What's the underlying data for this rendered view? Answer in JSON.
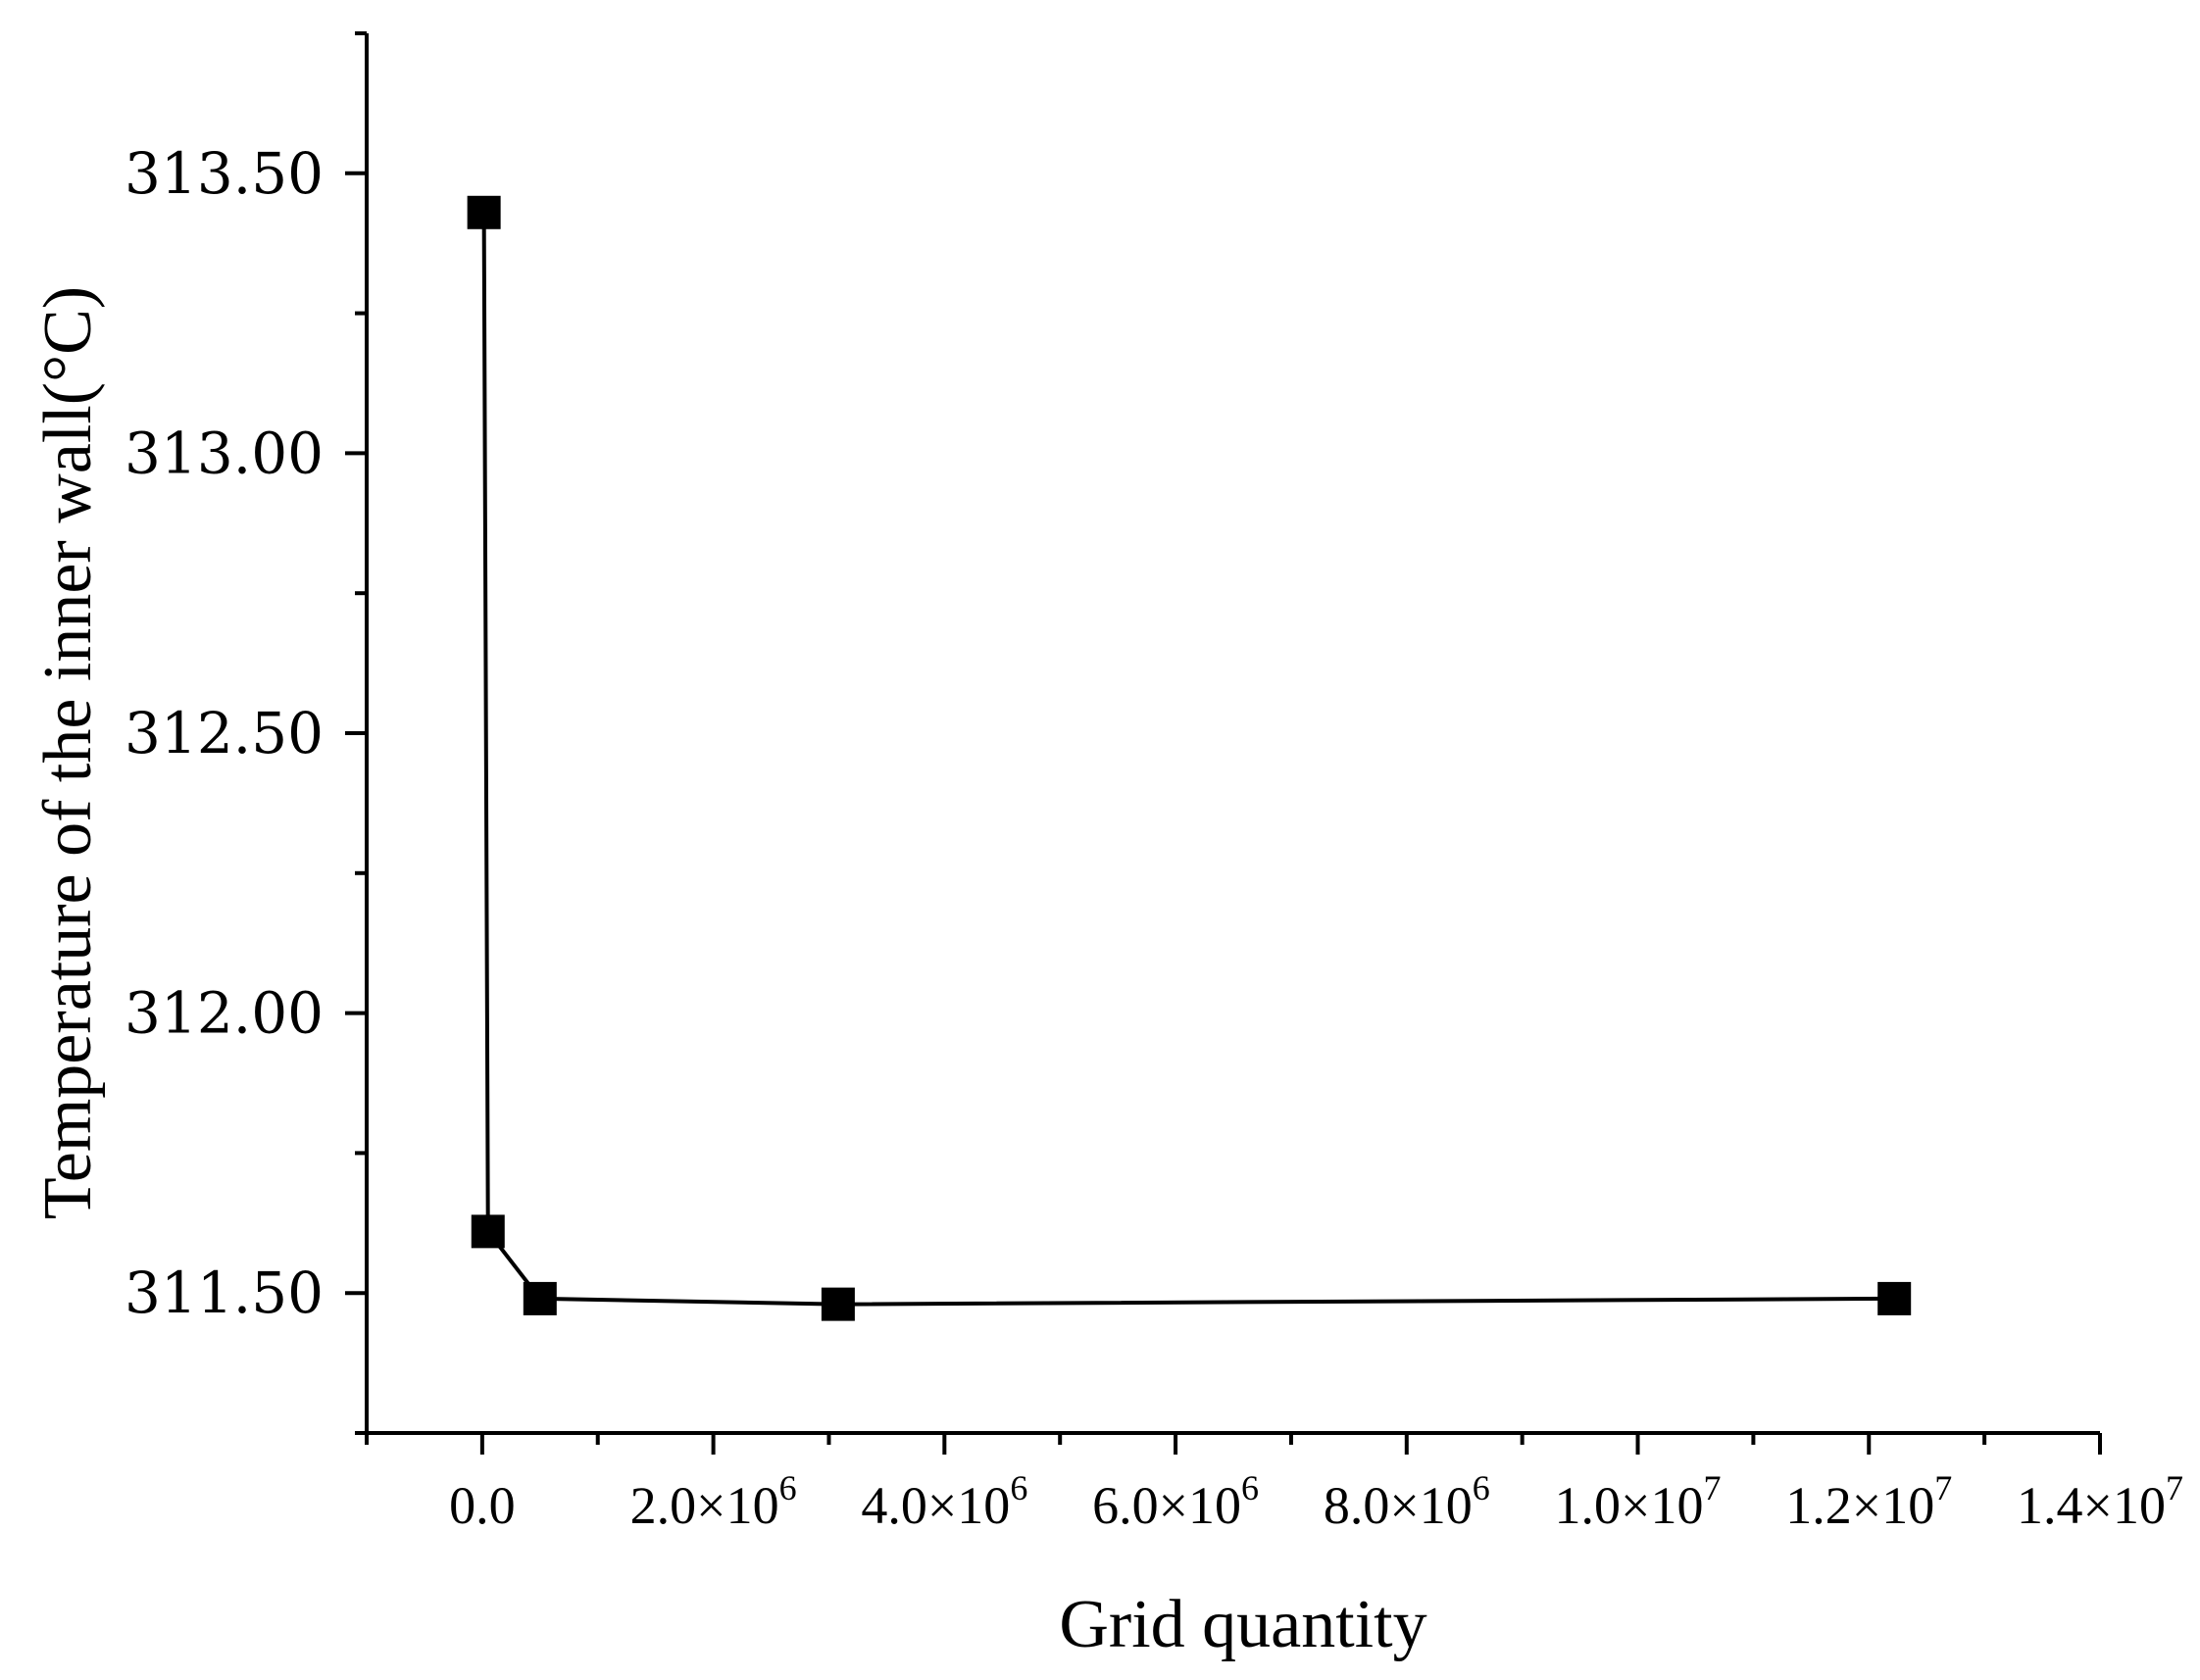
{
  "chart_data": {
    "type": "line",
    "xlabel": "Grid quantity",
    "ylabel": "Temperature of the inner wall(°C)",
    "xlim": [
      -1000000,
      14000000
    ],
    "ylim": [
      311.25,
      313.75
    ],
    "x_ticks": [
      {
        "value": 0,
        "mantissa": "0.0",
        "exponent": ""
      },
      {
        "value": 2000000,
        "mantissa": "2.0×10",
        "exponent": "6"
      },
      {
        "value": 4000000,
        "mantissa": "4.0×10",
        "exponent": "6"
      },
      {
        "value": 6000000,
        "mantissa": "6.0×10",
        "exponent": "6"
      },
      {
        "value": 8000000,
        "mantissa": "8.0×10",
        "exponent": "6"
      },
      {
        "value": 10000000,
        "mantissa": "1.0×10",
        "exponent": "7"
      },
      {
        "value": 12000000,
        "mantissa": "1.2×10",
        "exponent": "7"
      },
      {
        "value": 14000000,
        "mantissa": "1.4×10",
        "exponent": "7"
      }
    ],
    "y_ticks": [
      {
        "value": 311.5,
        "label": "311.50"
      },
      {
        "value": 312.0,
        "label": "312.00"
      },
      {
        "value": 312.5,
        "label": "312.50"
      },
      {
        "value": 313.0,
        "label": "313.00"
      },
      {
        "value": 313.5,
        "label": "313.50"
      }
    ],
    "grid": false,
    "legend": "none",
    "series": [
      {
        "color": "#000000",
        "marker": "square",
        "x": [
          15000,
          50000,
          500000,
          3080000,
          12220000
        ],
        "y": [
          313.43,
          311.61,
          311.49,
          311.48,
          311.49
        ]
      }
    ]
  }
}
